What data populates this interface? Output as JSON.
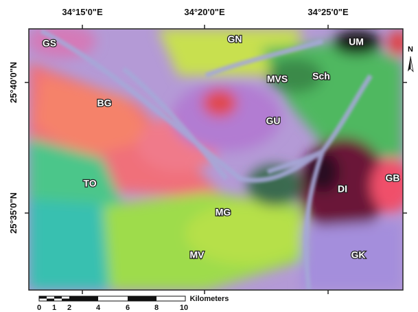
{
  "map": {
    "longitude_labels": [
      "34°15'0\"E",
      "34°20'0\"E",
      "34°25'0\"E"
    ],
    "latitude_labels": [
      "25°40'0\"N",
      "25°35'0\"N"
    ],
    "unit_labels": [
      "GS",
      "GN",
      "UM",
      "MVS",
      "Sch",
      "BG",
      "GU",
      "TO",
      "DI",
      "GB",
      "MG",
      "MV",
      "GK"
    ],
    "north": "N",
    "scale_bar": {
      "ticks": [
        "0",
        "1",
        "2",
        "4",
        "6",
        "8",
        "10"
      ],
      "unit": "Kilometers"
    }
  }
}
